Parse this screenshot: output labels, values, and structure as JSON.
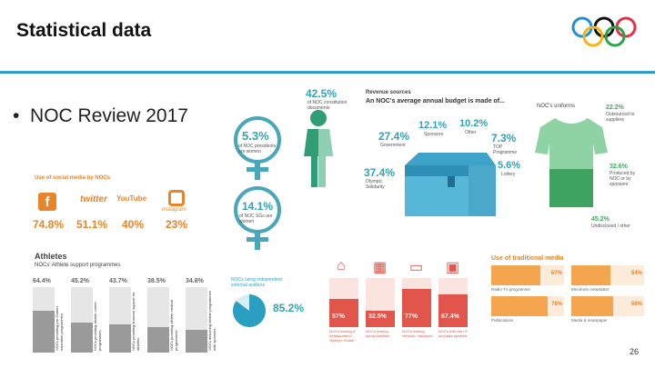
{
  "slide": {
    "title": "Statistical data",
    "bullet": "NOC Review 2017",
    "page_number": "26",
    "logo": "olympic-rings"
  },
  "gender": {
    "male_share": "42.5%",
    "male_caption": "of NOC constitution documents",
    "women_share": "5.3%",
    "women_caption": "of NOC presidents are women",
    "sg_share": "14.1%",
    "sg_caption": "of NOC SGs are women"
  },
  "revenue": {
    "heading": "Revenue sources",
    "subheading": "An NOC's average annual budget is made of...",
    "items": [
      {
        "value": "12.1%",
        "label": "Sponsors"
      },
      {
        "value": "10.2%",
        "label": "Other"
      },
      {
        "value": "27.4%",
        "label": "Government"
      },
      {
        "value": "7.3%",
        "label": "TOP Programme"
      },
      {
        "value": "37.4%",
        "label": "Olympic Solidarity"
      },
      {
        "value": "5.6%",
        "label": "Lottery"
      }
    ]
  },
  "uniforms": {
    "heading": "NOC's uniforms",
    "items": [
      {
        "value": "22.2%",
        "label": "Outsourced to suppliers"
      },
      {
        "value": "32.6%",
        "label": "Produced by NOC or by sponsors"
      },
      {
        "value": "45.2%",
        "label": "Undisclosed / other"
      }
    ]
  },
  "social": {
    "heading": "Use of social media by NOCs",
    "items": [
      {
        "icon": "facebook-icon",
        "value": "74.8%"
      },
      {
        "icon": "twitter-icon",
        "value": "51.1%",
        "brand": "twitter"
      },
      {
        "icon": "youtube-icon",
        "value": "40%",
        "brand": "YouTube"
      },
      {
        "icon": "instagram-icon",
        "value": "23%",
        "brand": "Instagram"
      }
    ]
  },
  "athletes": {
    "heading": "Athletes",
    "subheading": "NOCs' Athlete support programmes",
    "bars": [
      {
        "value": "64.4%",
        "fill": 0.644,
        "label": "NOCs providing pre-Games education programmes"
      },
      {
        "value": "45.2%",
        "fill": 0.452,
        "label": "NOCs providing athlete career programmes"
      },
      {
        "value": "43.7%",
        "fill": 0.437,
        "label": "NOCs providing financial support for athletes"
      },
      {
        "value": "38.5%",
        "fill": 0.385,
        "label": "NOCs providing athlete medical programmes"
      },
      {
        "value": "34.8%",
        "fill": 0.348,
        "label": "NOCs delivering athlete programmes with sponsors"
      }
    ]
  },
  "auditors": {
    "heading": "NOCs using independent external auditors",
    "value": "85.2%",
    "fraction": 0.852
  },
  "facilities": {
    "items": [
      {
        "icon": "building-icon",
        "value": "57%",
        "fill": 0.57,
        "label": "NOCs owning a headquarters / Olympic House"
      },
      {
        "icon": "stadium-icon",
        "value": "32.5%",
        "fill": 0.325,
        "label": "NOCs owning sports facilities"
      },
      {
        "icon": "bus-icon",
        "value": "77%",
        "fill": 0.77,
        "label": "NOCs owning vehicles / transport"
      },
      {
        "icon": "computer-icon",
        "value": "67.4%",
        "fill": 0.674,
        "label": "NOCs with own IT and data systems"
      }
    ]
  },
  "media": {
    "heading": "Use of traditional media",
    "items": [
      {
        "label": "Radio TV programme",
        "value": "67%",
        "fill": 0.67
      },
      {
        "label": "Electronic newsletter",
        "value": "54%",
        "fill": 0.54
      },
      {
        "label": "Publications",
        "value": "78%",
        "fill": 0.78
      },
      {
        "label": "Media & newspaper",
        "value": "58%",
        "fill": 0.58
      }
    ]
  }
}
